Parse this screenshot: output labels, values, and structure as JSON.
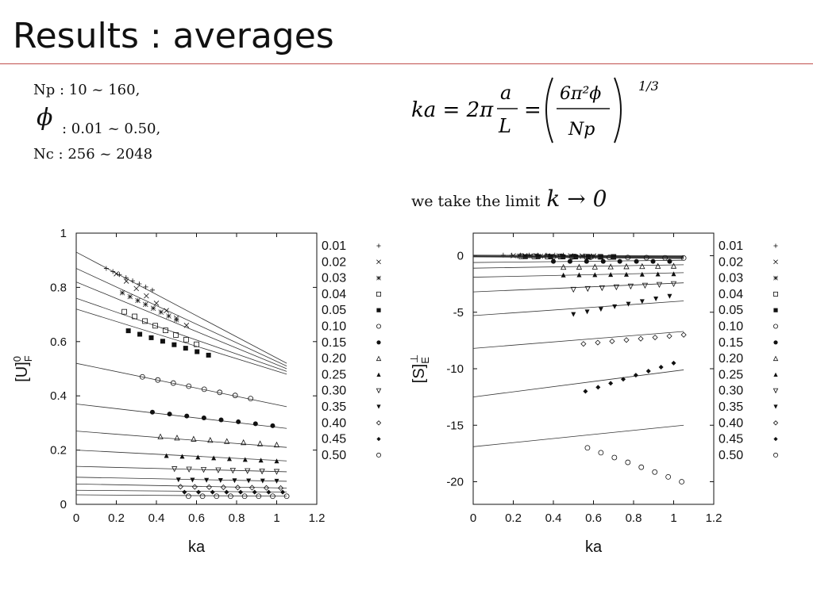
{
  "slide": {
    "title": "Results : averages"
  },
  "params": {
    "np_line": "Np  :  10 ~ 160,",
    "phi_symbol": "ϕ",
    "phi_line": ":  0.01 ~ 0.50,",
    "nc_line": "Nc  :  256 ~ 2048"
  },
  "formula": {
    "text": "ka = 2π a/L = (6π²ϕ / Np)^1/3"
  },
  "limit": {
    "text": "we take the limit",
    "math": "k → 0"
  },
  "colors": {
    "ink": "#111111",
    "rule": "#c0504d",
    "fit_line": "#333333"
  },
  "chart_data": [
    {
      "type": "scatter",
      "ylabel": "[U]F0",
      "ylabel_main": "[U]",
      "ylabel_sub": "F",
      "ylabel_sup": "0",
      "xlabel": "ka",
      "xlim": [
        0,
        1.2
      ],
      "ylim": [
        0,
        1
      ],
      "xticks": [
        "0",
        "0.2",
        "0.4",
        "0.6",
        "0.8",
        "1",
        "1.2"
      ],
      "yticks": [
        "0",
        "0.2",
        "0.4",
        "0.6",
        "0.8",
        "1"
      ],
      "grid": false,
      "legend_position": "right",
      "series": [
        {
          "name": "0.01",
          "marker": "plus",
          "x": [
            0.15,
            0.38
          ],
          "y": [
            0.87,
            0.79
          ],
          "fit": [
            0.93,
            0.52
          ]
        },
        {
          "name": "0.02",
          "marker": "cross",
          "x": [
            0.2,
            0.55
          ],
          "y": [
            0.85,
            0.66
          ],
          "fit": [
            0.87,
            0.51
          ]
        },
        {
          "name": "0.03",
          "marker": "star",
          "x": [
            0.23,
            0.5
          ],
          "y": [
            0.78,
            0.68
          ],
          "fit": [
            0.82,
            0.5
          ]
        },
        {
          "name": "0.04",
          "marker": "square-open",
          "x": [
            0.24,
            0.6
          ],
          "y": [
            0.71,
            0.59
          ],
          "fit": [
            0.76,
            0.49
          ]
        },
        {
          "name": "0.05",
          "marker": "square-filled",
          "x": [
            0.26,
            0.66
          ],
          "y": [
            0.64,
            0.55
          ],
          "fit": [
            0.72,
            0.48
          ]
        },
        {
          "name": "0.10",
          "marker": "circle-open",
          "x": [
            0.33,
            0.87
          ],
          "y": [
            0.47,
            0.39
          ],
          "fit": [
            0.52,
            0.36
          ]
        },
        {
          "name": "0.15",
          "marker": "circle-filled",
          "x": [
            0.38,
            0.98
          ],
          "y": [
            0.34,
            0.29
          ],
          "fit": [
            0.37,
            0.28
          ]
        },
        {
          "name": "0.20",
          "marker": "triangle-open",
          "x": [
            0.42,
            1.0
          ],
          "y": [
            0.25,
            0.22
          ],
          "fit": [
            0.27,
            0.21
          ]
        },
        {
          "name": "0.25",
          "marker": "triangle-filled",
          "x": [
            0.45,
            1.0
          ],
          "y": [
            0.18,
            0.16
          ],
          "fit": [
            0.2,
            0.16
          ]
        },
        {
          "name": "0.30",
          "marker": "triangle-down-open",
          "x": [
            0.49,
            1.0
          ],
          "y": [
            0.13,
            0.12
          ],
          "fit": [
            0.14,
            0.12
          ]
        },
        {
          "name": "0.35",
          "marker": "triangle-down-filled",
          "x": [
            0.51,
            1.0
          ],
          "y": [
            0.09,
            0.085
          ],
          "fit": [
            0.1,
            0.085
          ]
        },
        {
          "name": "0.40",
          "marker": "diamond-open",
          "x": [
            0.52,
            1.02
          ],
          "y": [
            0.065,
            0.06
          ],
          "fit": [
            0.075,
            0.06
          ]
        },
        {
          "name": "0.45",
          "marker": "diamond-filled",
          "x": [
            0.54,
            1.03
          ],
          "y": [
            0.045,
            0.045
          ],
          "fit": [
            0.052,
            0.045
          ]
        },
        {
          "name": "0.50",
          "marker": "circle-open",
          "x": [
            0.56,
            1.05
          ],
          "y": [
            0.03,
            0.03
          ],
          "fit": [
            0.035,
            0.03
          ]
        }
      ]
    },
    {
      "type": "scatter",
      "ylabel": "[S]E⊥",
      "ylabel_main": "[S]",
      "ylabel_sub": "E",
      "ylabel_sup": "⊥",
      "xlabel": "ka",
      "xlim": [
        0,
        1.2
      ],
      "ylim": [
        -22,
        2
      ],
      "xticks": [
        "0",
        "0.2",
        "0.4",
        "0.6",
        "0.8",
        "1",
        "1.2"
      ],
      "yticks": [
        "-20",
        "-15",
        "-10",
        "-5",
        "0"
      ],
      "grid": false,
      "legend_position": "right",
      "series": [
        {
          "name": "0.01",
          "marker": "plus",
          "x": [
            0.15,
            0.45
          ],
          "y": [
            0.05,
            0.05
          ],
          "fit": [
            0.05,
            0.0
          ]
        },
        {
          "name": "0.02",
          "marker": "cross",
          "x": [
            0.2,
            0.6
          ],
          "y": [
            0.0,
            -0.02
          ],
          "fit": [
            0.0,
            -0.05
          ]
        },
        {
          "name": "0.03",
          "marker": "star",
          "x": [
            0.23,
            0.6
          ],
          "y": [
            -0.03,
            -0.06
          ],
          "fit": [
            -0.03,
            -0.1
          ]
        },
        {
          "name": "0.04",
          "marker": "square-open",
          "x": [
            0.24,
            0.7
          ],
          "y": [
            -0.05,
            -0.1
          ],
          "fit": [
            -0.05,
            -0.15
          ]
        },
        {
          "name": "0.05",
          "marker": "square-filled",
          "x": [
            0.26,
            0.7
          ],
          "y": [
            -0.08,
            -0.12
          ],
          "fit": [
            -0.08,
            -0.2
          ]
        },
        {
          "name": "0.10",
          "marker": "circle-open",
          "x": [
            0.4,
            1.05
          ],
          "y": [
            -0.1,
            -0.2
          ],
          "fit": [
            -0.1,
            -0.25
          ]
        },
        {
          "name": "0.15",
          "marker": "circle-filled",
          "x": [
            0.4,
            0.98
          ],
          "y": [
            -0.5,
            -0.5
          ],
          "fit": [
            -0.6,
            -0.4
          ]
        },
        {
          "name": "0.20",
          "marker": "triangle-open",
          "x": [
            0.45,
            1.0
          ],
          "y": [
            -1.0,
            -0.9
          ],
          "fit": [
            -1.1,
            -0.8
          ]
        },
        {
          "name": "0.25",
          "marker": "triangle-filled",
          "x": [
            0.45,
            1.0
          ],
          "y": [
            -1.7,
            -1.6
          ],
          "fit": [
            -1.9,
            -1.5
          ]
        },
        {
          "name": "0.30",
          "marker": "triangle-down-open",
          "x": [
            0.5,
            1.0
          ],
          "y": [
            -3.0,
            -2.5
          ],
          "fit": [
            -3.2,
            -2.4
          ]
        },
        {
          "name": "0.35",
          "marker": "triangle-down-filled",
          "x": [
            0.5,
            0.98
          ],
          "y": [
            -5.2,
            -3.6
          ],
          "fit": [
            -5.3,
            -4.0
          ]
        },
        {
          "name": "0.40",
          "marker": "diamond-open",
          "x": [
            0.55,
            1.05
          ],
          "y": [
            -7.8,
            -7.0
          ],
          "fit": [
            -8.2,
            -6.7
          ]
        },
        {
          "name": "0.45",
          "marker": "diamond-filled",
          "x": [
            0.56,
            1.0
          ],
          "y": [
            -12.0,
            -9.5
          ],
          "fit": [
            -12.5,
            -10.1
          ]
        },
        {
          "name": "0.50",
          "marker": "circle-open",
          "x": [
            0.57,
            1.04
          ],
          "y": [
            -17.0,
            -20.0
          ],
          "fit": [
            -16.9,
            -15.0
          ]
        }
      ]
    }
  ]
}
